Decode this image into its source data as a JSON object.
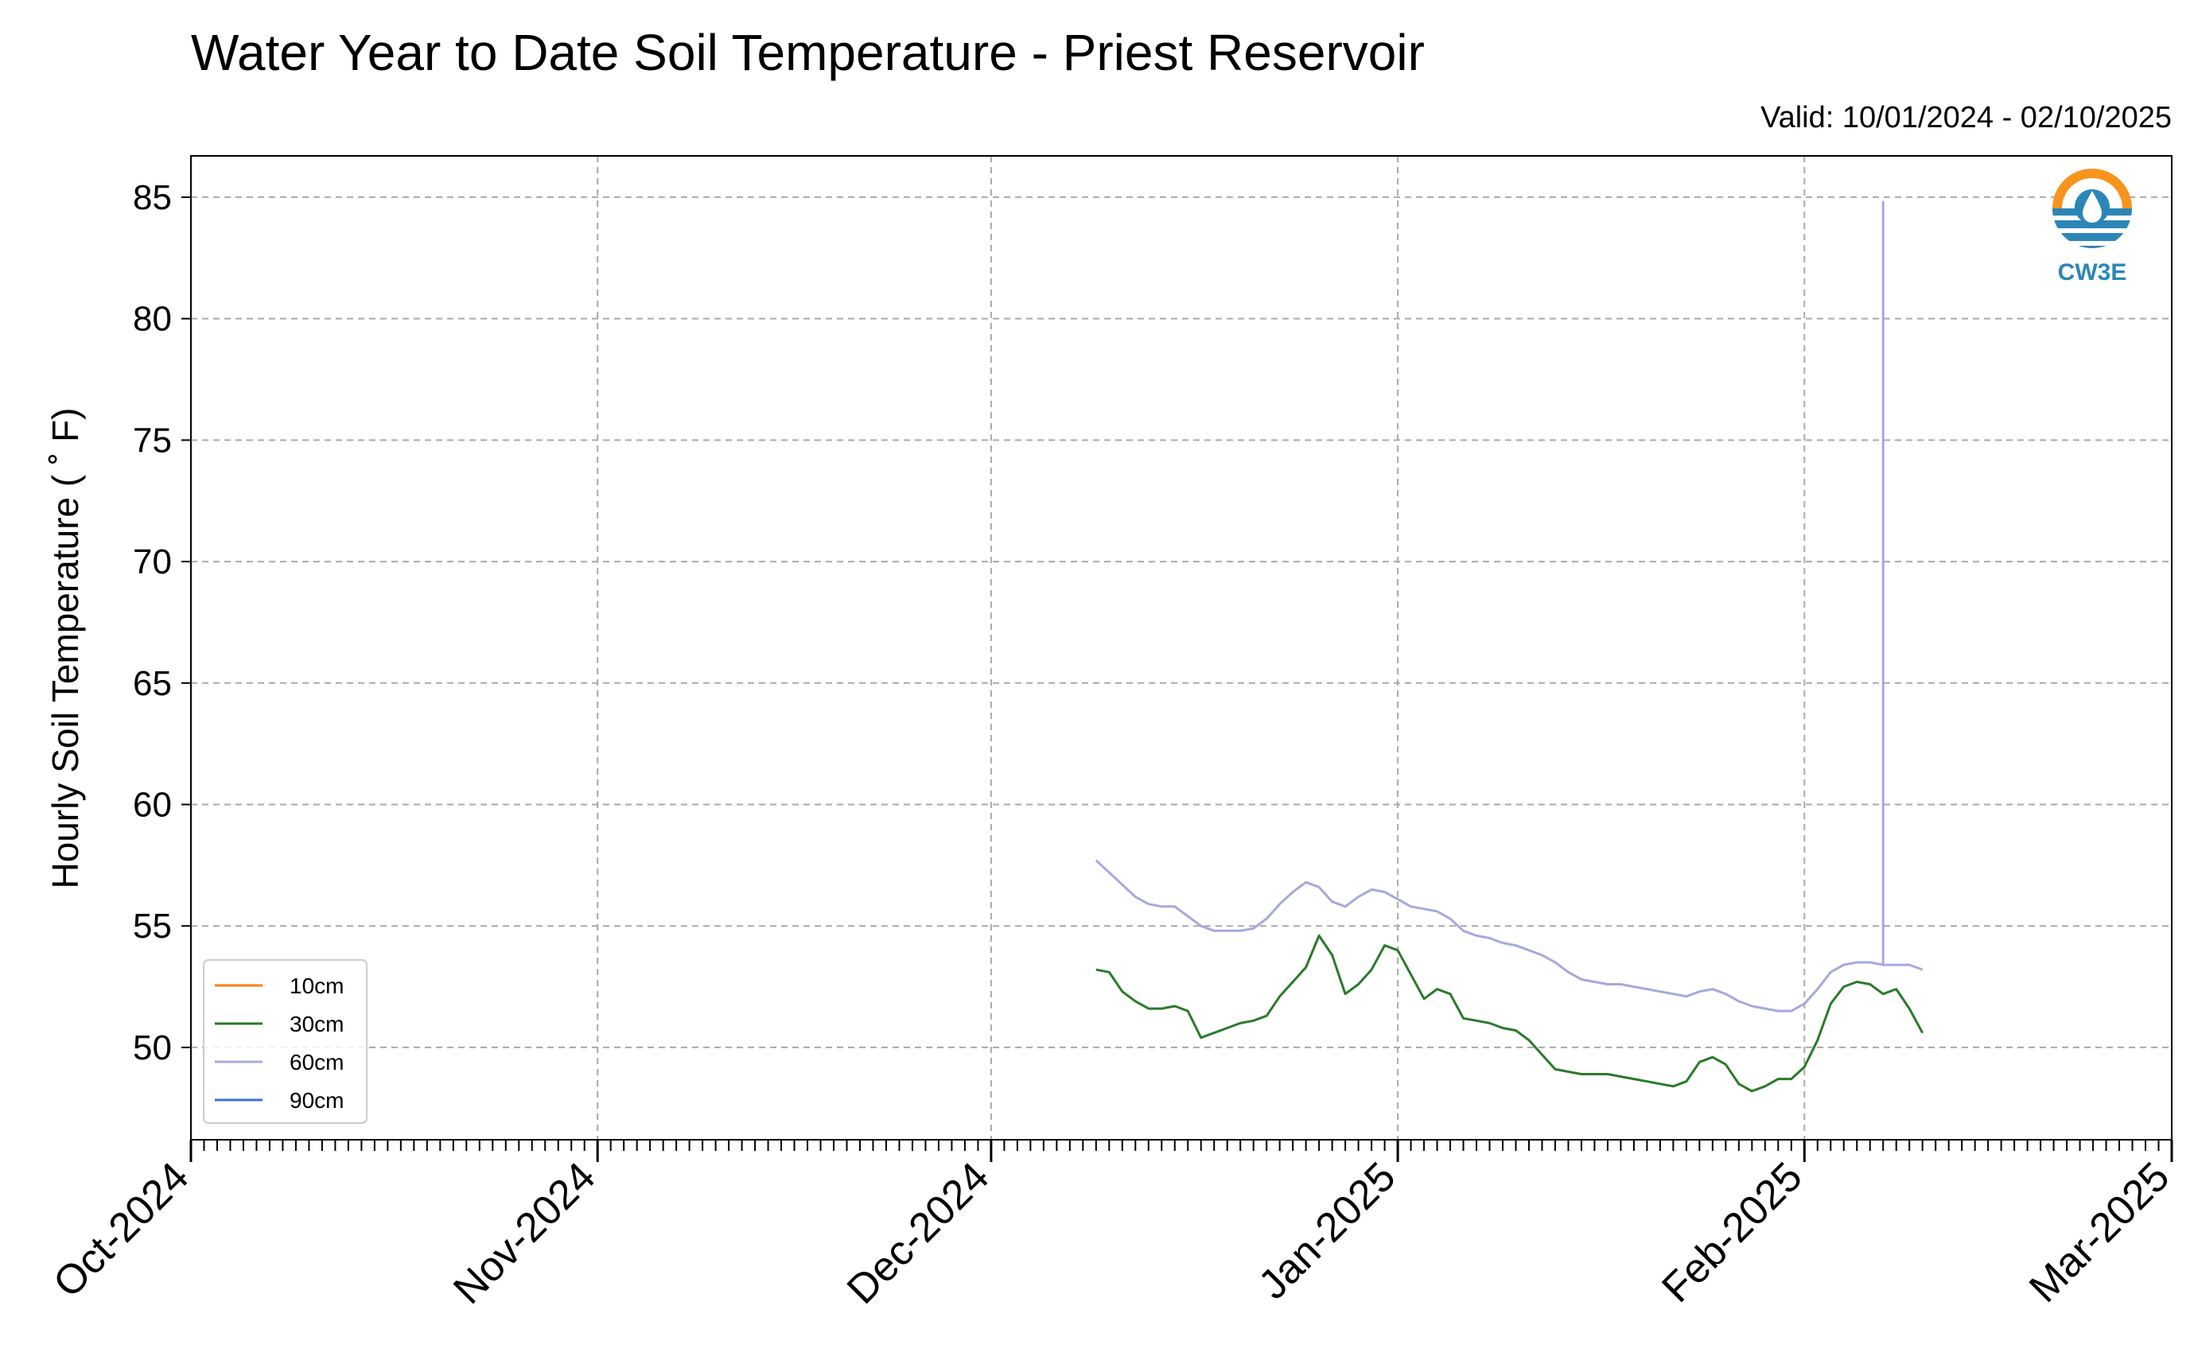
{
  "chart_data": {
    "type": "line",
    "title": "Water Year to Date Soil Temperature - Priest Reservoir",
    "subtitle": "Valid: 10/01/2024 - 02/10/2025",
    "xlabel": "",
    "ylabel": "Hourly Soil Temperature ( ˚ F)",
    "logo_text": "CW3E",
    "x_type": "date",
    "xlim": [
      "2024-10-01",
      "2025-03-01"
    ],
    "ylim": [
      46.2,
      86.7
    ],
    "x_ticks": [
      {
        "date": "2024-10-01",
        "label": "Oct-2024"
      },
      {
        "date": "2024-11-01",
        "label": "Nov-2024"
      },
      {
        "date": "2024-12-01",
        "label": "Dec-2024"
      },
      {
        "date": "2025-01-01",
        "label": "Jan-2025"
      },
      {
        "date": "2025-02-01",
        "label": "Feb-2025"
      },
      {
        "date": "2025-03-01",
        "label": "Mar-2025"
      }
    ],
    "y_ticks": [
      50,
      55,
      60,
      65,
      70,
      75,
      80,
      85
    ],
    "grid": true,
    "legend_position": "lower-left",
    "series": [
      {
        "name": "10cm",
        "color": "#ff7f0e",
        "x": [],
        "y": []
      },
      {
        "name": "30cm",
        "color": "#2a7a2a",
        "x": [
          "2024-12-09",
          "2024-12-10",
          "2024-12-11",
          "2024-12-12",
          "2024-12-13",
          "2024-12-14",
          "2024-12-15",
          "2024-12-16",
          "2024-12-17",
          "2024-12-18",
          "2024-12-19",
          "2024-12-20",
          "2024-12-21",
          "2024-12-22",
          "2024-12-23",
          "2024-12-24",
          "2024-12-25",
          "2024-12-26",
          "2024-12-27",
          "2024-12-28",
          "2024-12-29",
          "2024-12-30",
          "2024-12-31",
          "2025-01-01",
          "2025-01-02",
          "2025-01-03",
          "2025-01-04",
          "2025-01-05",
          "2025-01-06",
          "2025-01-07",
          "2025-01-08",
          "2025-01-09",
          "2025-01-10",
          "2025-01-11",
          "2025-01-12",
          "2025-01-13",
          "2025-01-14",
          "2025-01-15",
          "2025-01-16",
          "2025-01-17",
          "2025-01-18",
          "2025-01-19",
          "2025-01-20",
          "2025-01-21",
          "2025-01-22",
          "2025-01-23",
          "2025-01-24",
          "2025-01-25",
          "2025-01-26",
          "2025-01-27",
          "2025-01-28",
          "2025-01-29",
          "2025-01-30",
          "2025-01-31",
          "2025-02-01",
          "2025-02-02",
          "2025-02-03",
          "2025-02-04",
          "2025-02-05",
          "2025-02-06",
          "2025-02-07",
          "2025-02-08",
          "2025-02-09",
          "2025-02-10"
        ],
        "y": [
          53.2,
          53.1,
          52.3,
          51.9,
          51.6,
          51.6,
          51.7,
          51.5,
          50.4,
          50.6,
          50.8,
          51.0,
          51.1,
          51.3,
          52.1,
          52.7,
          53.3,
          54.6,
          53.8,
          52.2,
          52.6,
          53.2,
          54.2,
          54.0,
          53.0,
          52.0,
          52.4,
          52.2,
          51.2,
          51.1,
          51.0,
          50.8,
          50.7,
          50.3,
          49.7,
          49.1,
          49.0,
          48.9,
          48.9,
          48.9,
          48.8,
          48.7,
          48.6,
          48.5,
          48.4,
          48.6,
          49.4,
          49.6,
          49.3,
          48.5,
          48.2,
          48.4,
          48.7,
          48.7,
          49.2,
          50.3,
          51.8,
          52.5,
          52.7,
          52.6,
          52.2,
          52.4,
          51.6,
          50.6
        ]
      },
      {
        "name": "60cm",
        "color": "#a5a9dc",
        "x": [
          "2024-12-09",
          "2024-12-10",
          "2024-12-11",
          "2024-12-12",
          "2024-12-13",
          "2024-12-14",
          "2024-12-15",
          "2024-12-16",
          "2024-12-17",
          "2024-12-18",
          "2024-12-19",
          "2024-12-20",
          "2024-12-21",
          "2024-12-22",
          "2024-12-23",
          "2024-12-24",
          "2024-12-25",
          "2024-12-26",
          "2024-12-27",
          "2024-12-28",
          "2024-12-29",
          "2024-12-30",
          "2024-12-31",
          "2025-01-01",
          "2025-01-02",
          "2025-01-03",
          "2025-01-04",
          "2025-01-05",
          "2025-01-06",
          "2025-01-07",
          "2025-01-08",
          "2025-01-09",
          "2025-01-10",
          "2025-01-11",
          "2025-01-12",
          "2025-01-13",
          "2025-01-14",
          "2025-01-15",
          "2025-01-16",
          "2025-01-17",
          "2025-01-18",
          "2025-01-19",
          "2025-01-20",
          "2025-01-21",
          "2025-01-22",
          "2025-01-23",
          "2025-01-24",
          "2025-01-25",
          "2025-01-26",
          "2025-01-27",
          "2025-01-28",
          "2025-01-29",
          "2025-01-30",
          "2025-01-31",
          "2025-02-01",
          "2025-02-02",
          "2025-02-03",
          "2025-02-04",
          "2025-02-05",
          "2025-02-06",
          "2025-02-07",
          "2025-02-07",
          "2025-02-07",
          "2025-02-08",
          "2025-02-09",
          "2025-02-10"
        ],
        "y": [
          57.7,
          57.2,
          56.7,
          56.2,
          55.9,
          55.8,
          55.8,
          55.4,
          55.0,
          54.8,
          54.8,
          54.8,
          54.9,
          55.3,
          55.9,
          56.4,
          56.8,
          56.6,
          56.0,
          55.8,
          56.2,
          56.5,
          56.4,
          56.1,
          55.8,
          55.7,
          55.6,
          55.3,
          54.8,
          54.6,
          54.5,
          54.3,
          54.2,
          54.0,
          53.8,
          53.5,
          53.1,
          52.8,
          52.7,
          52.6,
          52.6,
          52.5,
          52.4,
          52.3,
          52.2,
          52.1,
          52.3,
          52.4,
          52.2,
          51.9,
          51.7,
          51.6,
          51.5,
          51.5,
          51.8,
          52.4,
          53.1,
          53.4,
          53.5,
          53.5,
          53.4,
          84.8,
          53.4,
          53.4,
          53.4,
          53.2
        ]
      },
      {
        "name": "90cm",
        "color": "#3f6fdc",
        "x": [],
        "y": []
      }
    ]
  }
}
